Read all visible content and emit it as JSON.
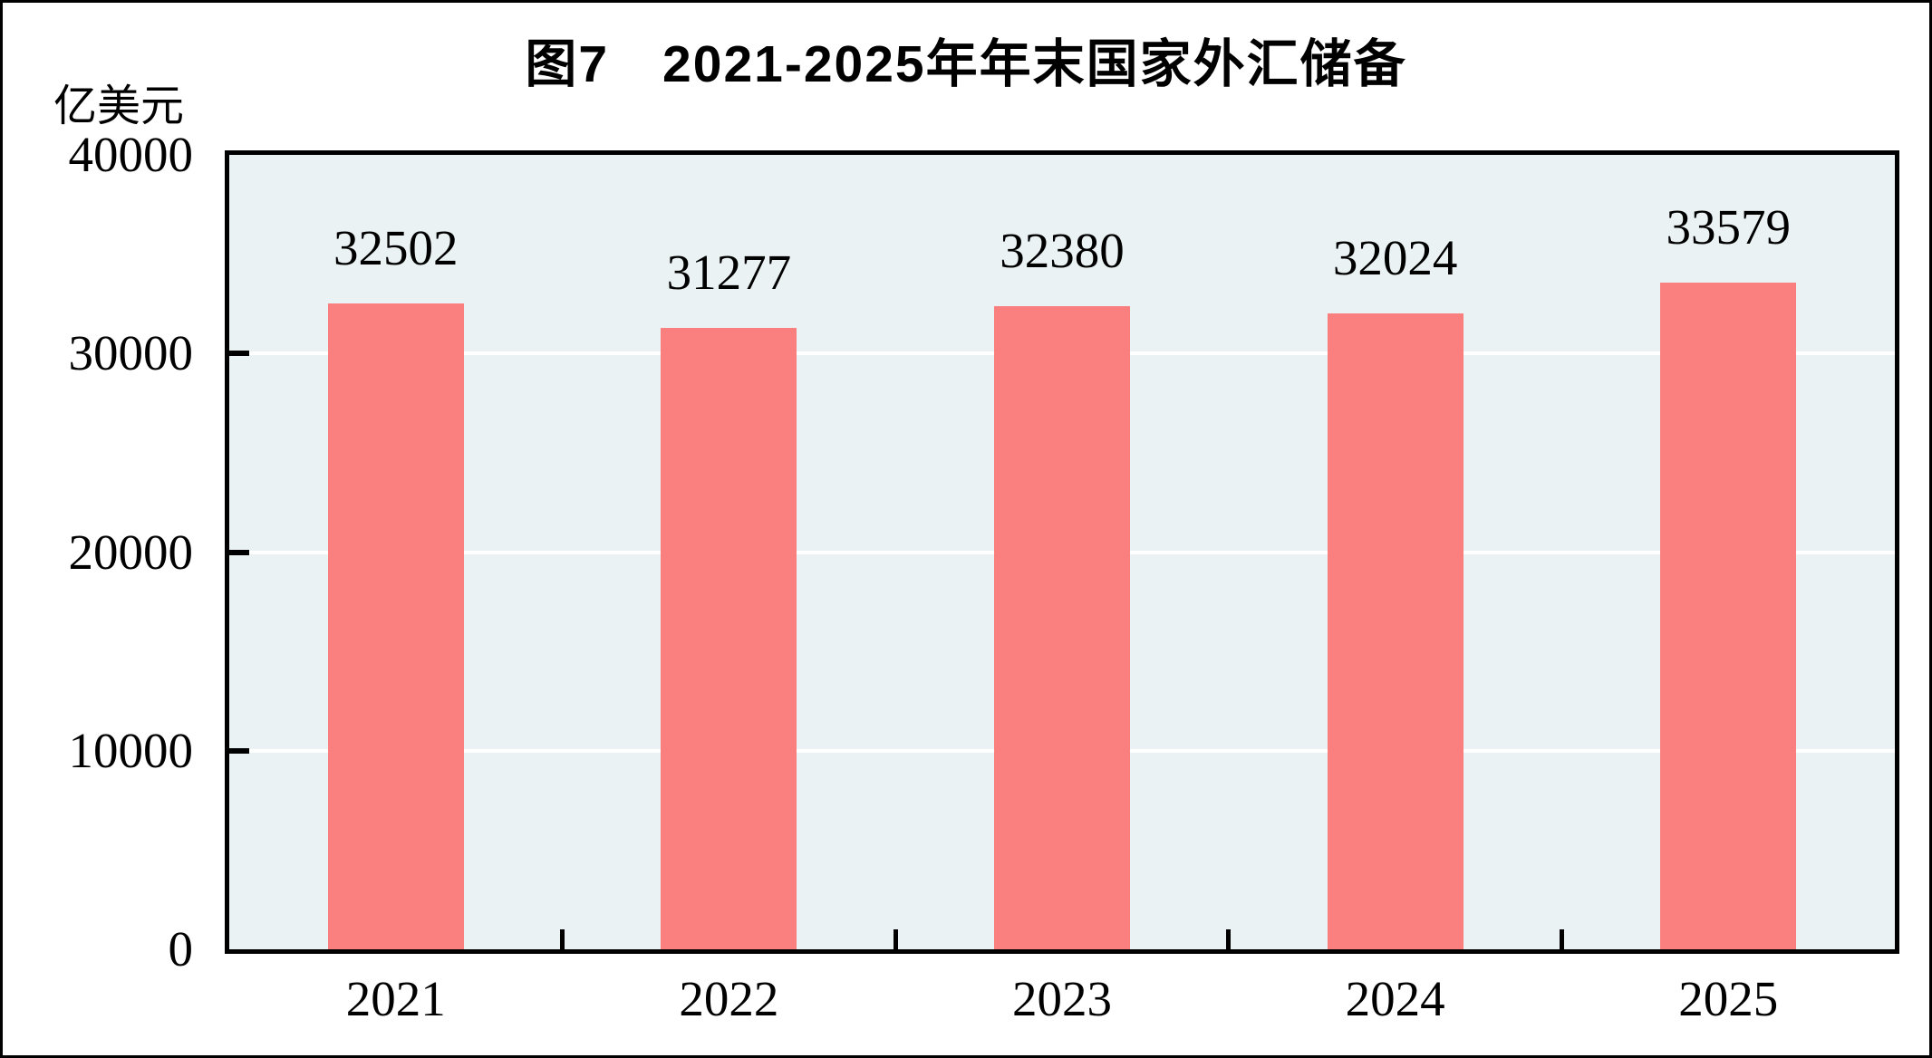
{
  "chart_data": {
    "type": "bar",
    "title": "图7　2021-2025年年末国家外汇储备",
    "unit_label": "亿美元",
    "categories": [
      "2021",
      "2022",
      "2023",
      "2024",
      "2025"
    ],
    "values": [
      32502,
      31277,
      32380,
      32024,
      33579
    ],
    "data_labels": [
      "32502",
      "31277",
      "32380",
      "32024",
      "33579"
    ],
    "xlabel": "",
    "ylabel": "亿美元",
    "ylim": [
      0,
      40000
    ],
    "yticks": [
      0,
      10000,
      20000,
      30000,
      40000
    ],
    "ytick_labels": [
      "0",
      "10000",
      "20000",
      "30000",
      "40000"
    ],
    "legend_position": "none",
    "grid": "horizontal-white",
    "bar_color": "#FA7F7F",
    "plot_background": "#EAF2F4",
    "gridline_color": "#FFFFFF",
    "axis_color": "#000000",
    "text_color": "#000000"
  }
}
